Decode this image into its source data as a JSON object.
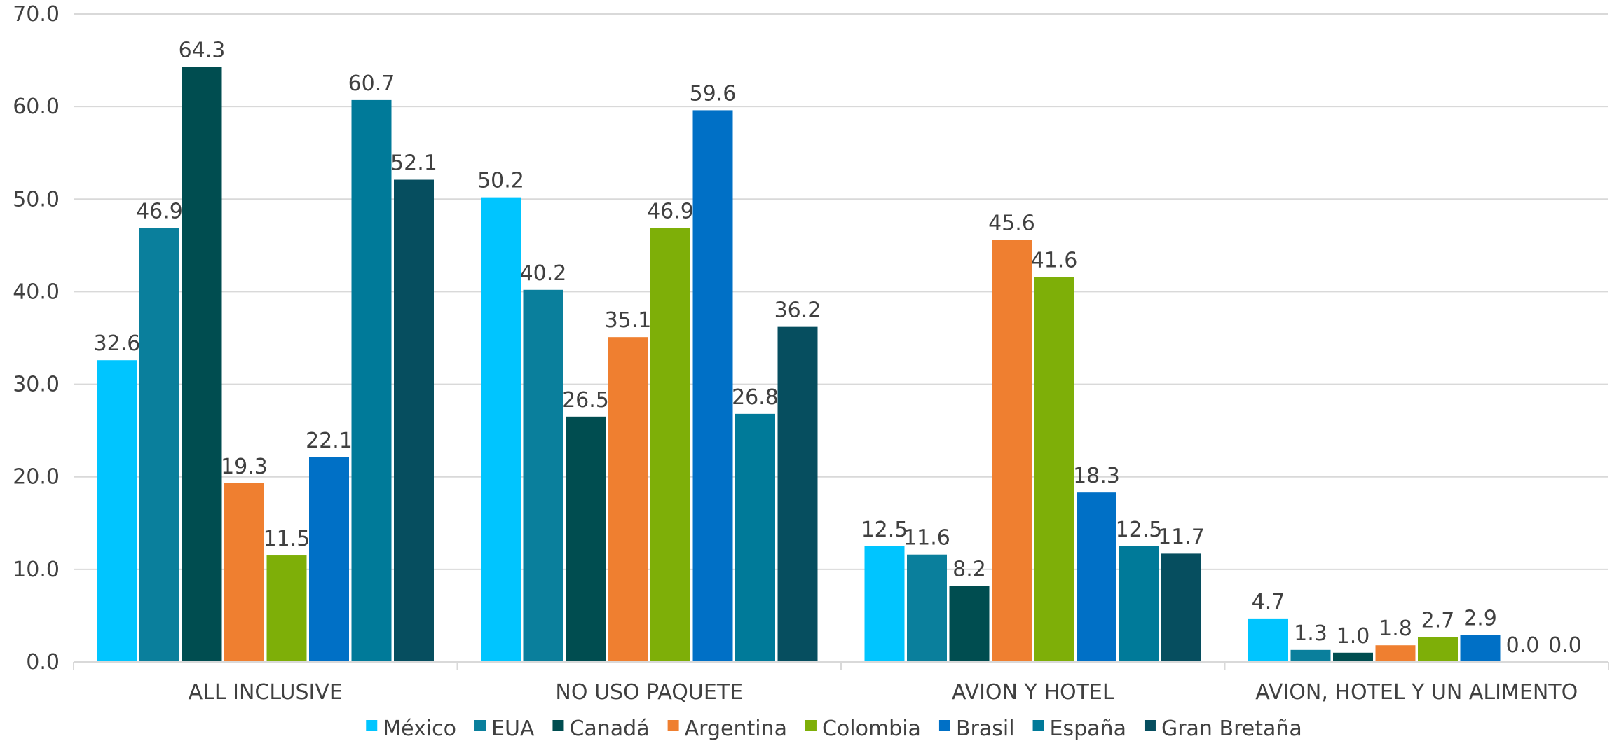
{
  "chart_data": {
    "type": "bar",
    "categories": [
      "ALL INCLUSIVE",
      "NO USO PAQUETE",
      "AVION Y HOTEL",
      "AVION, HOTEL Y UN ALIMENTO"
    ],
    "series": [
      {
        "name": "México",
        "color": "#00c5ff",
        "values": [
          32.6,
          50.2,
          12.5,
          4.7
        ]
      },
      {
        "name": "EUA",
        "color": "#0a7f9c",
        "values": [
          46.9,
          40.2,
          11.6,
          1.3
        ]
      },
      {
        "name": "Canadá",
        "color": "#004d50",
        "values": [
          64.3,
          26.5,
          8.2,
          1.0
        ]
      },
      {
        "name": "Argentina",
        "color": "#ef7f30",
        "values": [
          19.3,
          35.1,
          45.6,
          1.8
        ]
      },
      {
        "name": "Colombia",
        "color": "#7eaf08",
        "values": [
          11.5,
          46.9,
          41.6,
          2.7
        ]
      },
      {
        "name": "Brasil",
        "color": "#0070c6",
        "values": [
          22.1,
          59.6,
          18.3,
          2.9
        ]
      },
      {
        "name": "España",
        "color": "#007a99",
        "values": [
          60.7,
          26.8,
          12.5,
          0.0
        ]
      },
      {
        "name": "Gran Bretaña",
        "color": "#064e5f",
        "values": [
          52.1,
          36.2,
          11.7,
          0.0
        ]
      }
    ],
    "ylim": [
      0,
      70
    ],
    "yticks": [
      "0.0",
      "10.0",
      "20.0",
      "30.0",
      "40.0",
      "50.0",
      "60.0",
      "70.0"
    ],
    "grid": true,
    "legend": "bottom"
  }
}
